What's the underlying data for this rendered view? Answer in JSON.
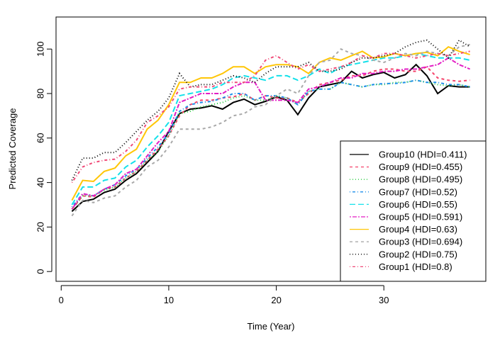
{
  "chart_data": {
    "type": "line",
    "title": "",
    "xlabel": "Time (Year)",
    "ylabel": "Predicted Coverage",
    "xlim": [
      -0.48,
      39.48
    ],
    "ylim": [
      -4.4,
      114.4
    ],
    "xticks": [
      0,
      10,
      20,
      30
    ],
    "yticks": [
      0,
      20,
      40,
      60,
      80,
      100
    ],
    "grid": false,
    "legend_position": "bottom-right",
    "x": [
      1,
      2,
      3,
      4,
      5,
      6,
      7,
      8,
      9,
      10,
      11,
      12,
      13,
      14,
      15,
      16,
      17,
      18,
      19,
      20,
      21,
      22,
      23,
      24,
      25,
      26,
      27,
      28,
      29,
      30,
      31,
      32,
      33,
      34,
      35,
      36,
      37,
      38
    ],
    "series": [
      {
        "name": "Group10 (HDI=0.411)",
        "color": "#000000",
        "lty": "solid",
        "values": [
          27,
          31.5,
          32.5,
          35.5,
          37,
          41,
          44,
          49,
          54,
          63,
          71,
          73,
          73.5,
          74.5,
          73,
          76,
          77.5,
          75,
          76.5,
          78.5,
          77,
          70.5,
          78,
          83,
          84,
          85,
          90,
          87,
          88.5,
          89.5,
          87,
          88.5,
          93,
          88,
          80,
          83.5,
          83,
          83
        ]
      },
      {
        "name": "Group9 (HDI=0.455)",
        "color": "#F5436B",
        "lty": "dashed",
        "values": [
          28,
          34,
          33.5,
          37,
          38,
          42,
          45,
          50,
          55,
          61,
          70,
          75,
          77,
          77,
          78,
          78.5,
          80,
          77,
          79,
          78,
          78,
          76,
          80,
          84,
          85,
          86,
          88,
          88,
          90,
          91,
          91,
          90,
          90,
          92,
          87,
          86,
          85.5,
          86
        ]
      },
      {
        "name": "Group8 (HDI=0.495)",
        "color": "#22C93A",
        "lty": "dotted",
        "values": [
          28,
          34,
          34,
          36.5,
          38,
          42,
          45,
          50,
          54,
          61,
          71,
          72,
          74,
          75,
          76,
          78,
          79,
          77,
          77,
          79,
          78,
          75,
          81,
          82,
          82,
          85,
          84,
          83,
          84,
          84,
          85,
          85,
          86,
          85,
          84,
          83.5,
          84,
          83
        ]
      },
      {
        "name": "Group7 (HDI=0.52)",
        "color": "#1E8FEA",
        "lty": "dotdash",
        "values": [
          29,
          35,
          34,
          37,
          39,
          43,
          46,
          51,
          56,
          62,
          72,
          75,
          76,
          76.5,
          78,
          80,
          80,
          77,
          79,
          79,
          78,
          75,
          81,
          82,
          82,
          85,
          84,
          83,
          84,
          84.5,
          84.5,
          85,
          86,
          85,
          85,
          84,
          84,
          83
        ]
      },
      {
        "name": "Group6 (HDI=0.55)",
        "color": "#14E1EA",
        "lty": "longdash",
        "values": [
          30,
          38,
          38,
          41,
          42,
          47,
          50,
          56,
          61,
          67,
          79,
          80,
          81,
          82,
          84,
          87,
          88,
          87,
          86,
          88,
          88,
          86,
          88,
          91,
          89,
          92,
          93,
          94,
          95,
          96,
          96,
          97,
          98,
          97,
          96,
          96,
          96,
          95
        ]
      },
      {
        "name": "Group5 (HDI=0.591)",
        "color": "#E31CC4",
        "lty": "twodash",
        "values": [
          28,
          35,
          34,
          37,
          39,
          44,
          46,
          52,
          58,
          63,
          76,
          78,
          80,
          80,
          80,
          83,
          85,
          85,
          77,
          77,
          77,
          76,
          82,
          83,
          85,
          87,
          87,
          89,
          89,
          90,
          90,
          91,
          91,
          92,
          93,
          96,
          93,
          91
        ]
      },
      {
        "name": "Group4 (HDI=0.63)",
        "color": "#FFC607",
        "lty": "solid",
        "values": [
          32,
          41,
          40.5,
          45,
          46.5,
          52,
          55,
          64,
          68,
          75,
          85,
          85,
          87,
          87,
          89,
          92,
          92,
          89,
          92,
          93,
          93,
          92,
          89,
          94,
          96,
          95,
          97,
          99,
          96,
          96.5,
          98,
          97,
          98,
          98.5,
          97,
          101,
          99,
          97.5
        ]
      },
      {
        "name": "Group3 (HDI=0.694)",
        "color": "#A9A9A9",
        "lty": "dashed",
        "values": [
          25,
          32,
          31,
          33,
          34,
          38,
          41,
          47,
          50,
          56,
          64,
          64,
          64,
          65,
          67,
          70,
          71,
          74,
          75,
          79,
          82,
          80,
          88,
          94,
          95,
          100,
          98,
          97,
          95,
          94,
          96,
          98,
          97,
          99,
          98,
          97,
          101,
          102
        ]
      },
      {
        "name": "Group2 (HDI=0.75)",
        "color": "#000000",
        "lty": "dotted",
        "values": [
          41,
          51,
          51,
          53.5,
          53.5,
          58,
          63,
          68,
          72,
          78,
          89,
          83,
          84,
          84,
          86,
          88,
          87,
          85,
          89,
          92,
          92,
          92,
          94,
          90,
          90,
          91,
          94,
          96,
          96,
          97,
          98,
          101,
          103,
          104,
          100,
          96,
          104,
          101
        ]
      },
      {
        "name": "Group1 (HDI=0.8)",
        "color": "#F04A78",
        "lty": "dotdash",
        "values": [
          40,
          47,
          49,
          50,
          50.5,
          54,
          59,
          67,
          70,
          74,
          82,
          83,
          83,
          83,
          85,
          85,
          85,
          88,
          95,
          97,
          94,
          91,
          93,
          90,
          91,
          92,
          94,
          97,
          96,
          98,
          98,
          97,
          96,
          97,
          98,
          97,
          98,
          99
        ]
      }
    ]
  }
}
